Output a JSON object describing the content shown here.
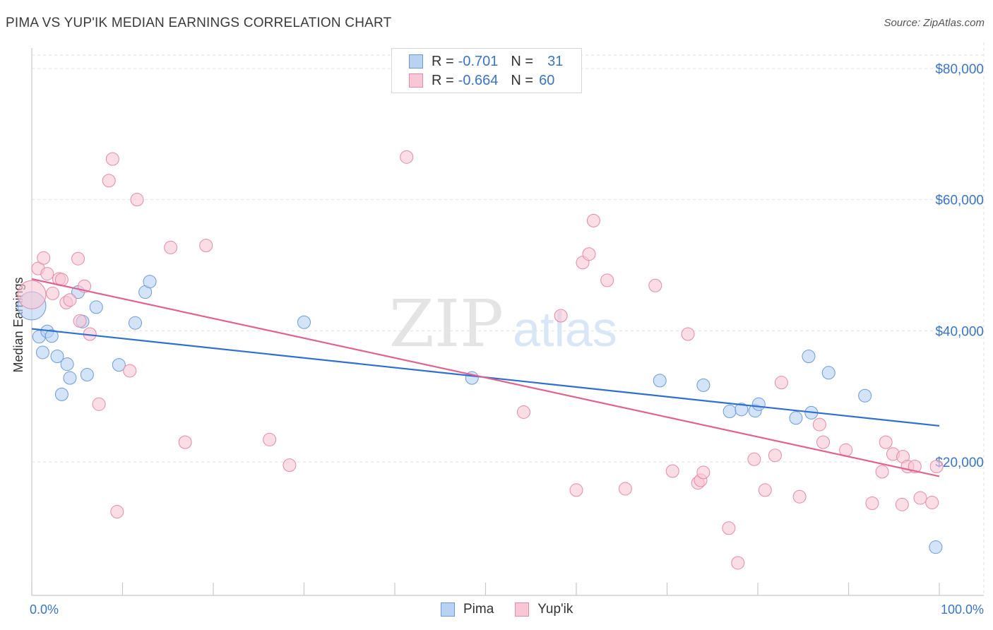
{
  "header": {
    "title": "PIMA VS YUP'IK MEDIAN EARNINGS CORRELATION CHART",
    "source": "Source: ZipAtlas.com"
  },
  "legend": {
    "rows": [
      {
        "r_label": "R =",
        "r_value": "-0.701",
        "n_label": "N =",
        "n_value": "31"
      },
      {
        "r_label": "R =",
        "r_value": "-0.664",
        "n_label": "N =",
        "n_value": "60"
      }
    ]
  },
  "bottom_legend": {
    "pima": "Pima",
    "yupik": "Yup'ik"
  },
  "watermark": {
    "zip": "ZIP",
    "atlas": "atlas"
  },
  "colors": {
    "pima_fill": "#b7d2f3",
    "pima_stroke": "#6d9ad6",
    "pima_line": "#2f6fd0",
    "yupik_fill": "#f8c6d5",
    "yupik_stroke": "#e58aa8",
    "yupik_line": "#e2628f",
    "axis_label": "#3b74c7",
    "grid": "#e3e3e3"
  },
  "chart_data": {
    "type": "scatter",
    "title": "PIMA VS YUP'IK MEDIAN EARNINGS CORRELATION CHART",
    "xlabel": "",
    "ylabel": "Median Earnings",
    "x_tick_labels": [
      "0.0%",
      "100.0%"
    ],
    "y_tick_labels": [
      "$20,000",
      "$40,000",
      "$60,000",
      "$80,000"
    ],
    "y_ticks": [
      20000,
      40000,
      60000,
      80000
    ],
    "xlim": [
      0,
      100
    ],
    "ylim": [
      2000,
      82000
    ],
    "grid": true,
    "legend_position": "top-center",
    "series": [
      {
        "name": "Pima",
        "R": -0.701,
        "N": 31,
        "trend": [
          [
            0,
            40300
          ],
          [
            100,
            25500
          ]
        ],
        "points": [
          [
            0.0,
            43800,
            "large"
          ],
          [
            0.8,
            39100
          ],
          [
            1.2,
            36700
          ],
          [
            1.7,
            39900
          ],
          [
            2.2,
            39200
          ],
          [
            2.8,
            36100
          ],
          [
            3.3,
            30300
          ],
          [
            3.9,
            34900
          ],
          [
            4.2,
            32800
          ],
          [
            5.1,
            45900
          ],
          [
            5.6,
            41400
          ],
          [
            6.1,
            33300
          ],
          [
            7.1,
            43600
          ],
          [
            9.6,
            34800
          ],
          [
            11.4,
            41200
          ],
          [
            12.5,
            45900
          ],
          [
            13.0,
            47500
          ],
          [
            30.0,
            41300
          ],
          [
            48.5,
            32800
          ],
          [
            69.2,
            32400
          ],
          [
            74.0,
            31700
          ],
          [
            76.9,
            27700
          ],
          [
            78.2,
            28000
          ],
          [
            79.7,
            27800
          ],
          [
            80.1,
            28800
          ],
          [
            84.2,
            26700
          ],
          [
            85.6,
            36100
          ],
          [
            85.9,
            27500
          ],
          [
            87.8,
            33600
          ],
          [
            91.8,
            30100
          ],
          [
            99.6,
            7000
          ]
        ]
      },
      {
        "name": "Yup'ik",
        "R": -0.664,
        "N": 60,
        "trend": [
          [
            0,
            47900
          ],
          [
            100,
            17800
          ]
        ],
        "points": [
          [
            0.0,
            45500,
            "large"
          ],
          [
            0.7,
            49500
          ],
          [
            1.3,
            51100
          ],
          [
            1.7,
            48700
          ],
          [
            2.3,
            45700
          ],
          [
            3.0,
            47900
          ],
          [
            3.3,
            47800
          ],
          [
            3.8,
            44300
          ],
          [
            4.2,
            44700
          ],
          [
            5.1,
            51000
          ],
          [
            5.3,
            41500
          ],
          [
            5.8,
            46800
          ],
          [
            6.4,
            39500
          ],
          [
            7.4,
            28800
          ],
          [
            8.5,
            62900
          ],
          [
            8.9,
            66200
          ],
          [
            9.4,
            12400
          ],
          [
            10.8,
            33900
          ],
          [
            11.6,
            60000
          ],
          [
            15.3,
            52700
          ],
          [
            16.9,
            23000
          ],
          [
            19.2,
            53000
          ],
          [
            26.2,
            23400
          ],
          [
            28.4,
            19500
          ],
          [
            41.3,
            66500
          ],
          [
            54.2,
            27600
          ],
          [
            58.3,
            42300
          ],
          [
            60.0,
            15700
          ],
          [
            60.7,
            50400
          ],
          [
            61.4,
            51700
          ],
          [
            61.9,
            56800
          ],
          [
            63.4,
            47700
          ],
          [
            65.4,
            15900
          ],
          [
            68.7,
            46900
          ],
          [
            70.6,
            18600
          ],
          [
            72.3,
            39500
          ],
          [
            73.4,
            16800
          ],
          [
            73.7,
            17200
          ],
          [
            74.0,
            18400
          ],
          [
            76.8,
            9900
          ],
          [
            77.8,
            4600
          ],
          [
            79.6,
            20400
          ],
          [
            80.8,
            15700
          ],
          [
            81.9,
            21000
          ],
          [
            82.6,
            32100
          ],
          [
            84.6,
            14700
          ],
          [
            86.8,
            25700
          ],
          [
            87.2,
            23000
          ],
          [
            89.7,
            21800
          ],
          [
            92.6,
            13700
          ],
          [
            93.7,
            18500
          ],
          [
            94.1,
            23000
          ],
          [
            94.9,
            21200
          ],
          [
            95.9,
            13500
          ],
          [
            96.0,
            20800
          ],
          [
            96.5,
            19300
          ],
          [
            97.3,
            19300
          ],
          [
            97.9,
            14500
          ],
          [
            99.2,
            13800
          ],
          [
            99.7,
            19300
          ]
        ]
      }
    ]
  }
}
